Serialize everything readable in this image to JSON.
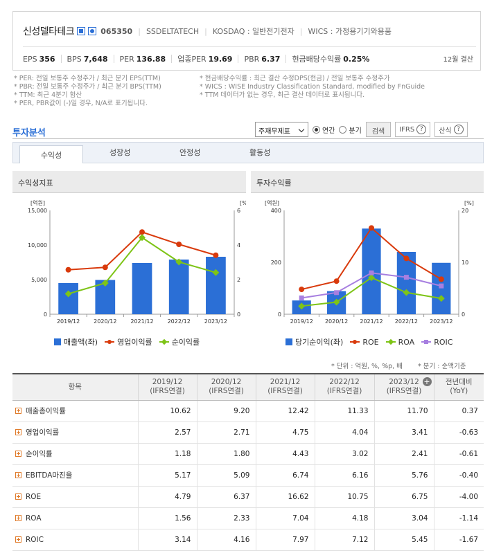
{
  "header": {
    "company": "신성델타테크",
    "code": "065350",
    "english_name": "SSDELTATECH",
    "market": "KOSDAQ : 일반전기전자",
    "wics": "WICS : 가정용기기와용품",
    "metrics": [
      {
        "label": "EPS",
        "value": "356"
      },
      {
        "label": "BPS",
        "value": "7,648"
      },
      {
        "label": "PER",
        "value": "136.88"
      },
      {
        "label": "업종PER",
        "value": "19.69"
      },
      {
        "label": "PBR",
        "value": "6.37"
      },
      {
        "label": "현금배당수익률",
        "value": "0.25%"
      }
    ],
    "fiscal": "12월 결산"
  },
  "notes": {
    "left": [
      "* PER: 전일 보통주 수정주가 / 최근 분기 EPS(TTM)",
      "* PBR: 전일 보통주 수정주가 / 최근 분기 BPS(TTM)",
      "* TTM: 최근 4분기 합산",
      "* PER, PBR값이 (-)일 경우, N/A로 표기됩니다."
    ],
    "right": [
      "* 현금배당수익률 : 최근 결산 수정DPS(현금) / 전일 보통주 수정주가",
      "* WICS : WISE Industry Classification Standard, modified by FnGuide",
      "* TTM 데이터가 없는 경우, 최근 결산 데이터로 표시됩니다."
    ]
  },
  "analysis": {
    "title": "투자분석",
    "select_value": "주재무제표",
    "radio_annual": "연간",
    "radio_quarter": "분기",
    "search_button": "검색",
    "ifrs_button": "IFRS",
    "formula_button": "산식",
    "tabs": [
      "수익성",
      "성장성",
      "안정성",
      "활동성"
    ]
  },
  "panels": {
    "left_title": "수익성지표",
    "right_title": "투자수익률"
  },
  "chart_data": [
    {
      "type": "bar",
      "categories": [
        "2019/12",
        "2020/12",
        "2021/12",
        "2022/12",
        "2023/12"
      ],
      "y_left_unit": "[억원]",
      "y_right_unit": "[%]",
      "y_left_ticks": [
        "15,000",
        "10,000",
        "5,000",
        "0"
      ],
      "y_right_ticks": [
        "6",
        "4",
        "2",
        "0"
      ],
      "y_left_lim": [
        0,
        15000
      ],
      "y_right_lim": [
        0,
        6
      ],
      "series": [
        {
          "name": "매출액(좌)",
          "axis": "left",
          "kind": "bar",
          "color": "#2b6fd6",
          "values": [
            4500,
            4950,
            7400,
            7900,
            8300
          ]
        },
        {
          "name": "영업이익률",
          "axis": "right",
          "kind": "line",
          "color": "#d93a0c",
          "values": [
            2.57,
            2.71,
            4.75,
            4.04,
            3.41
          ]
        },
        {
          "name": "순이익률",
          "axis": "right",
          "kind": "line",
          "color": "#7ec417",
          "values": [
            1.18,
            1.8,
            4.43,
            3.02,
            2.41
          ]
        }
      ]
    },
    {
      "type": "bar",
      "categories": [
        "2019/12",
        "2020/12",
        "2021/12",
        "2022/12",
        "2023/12"
      ],
      "y_left_unit": "[억원]",
      "y_right_unit": "[%]",
      "y_left_ticks": [
        "400",
        "200",
        "0"
      ],
      "y_right_ticks": [
        "20",
        "10",
        "0"
      ],
      "y_left_lim": [
        0,
        400
      ],
      "y_right_lim": [
        0,
        20
      ],
      "series": [
        {
          "name": "당기순이익(좌)",
          "axis": "left",
          "kind": "bar",
          "color": "#2b6fd6",
          "values": [
            53,
            89,
            330,
            240,
            198
          ]
        },
        {
          "name": "ROE",
          "axis": "right",
          "kind": "line",
          "color": "#d93a0c",
          "values": [
            4.79,
            6.37,
            16.62,
            10.75,
            6.75
          ]
        },
        {
          "name": "ROA",
          "axis": "right",
          "kind": "line",
          "color": "#7ec417",
          "values": [
            1.56,
            2.33,
            7.04,
            4.18,
            3.04
          ]
        },
        {
          "name": "ROIC",
          "axis": "right",
          "kind": "line",
          "color": "#a77fe0",
          "values": [
            3.14,
            4.16,
            7.97,
            7.12,
            5.45
          ]
        }
      ]
    }
  ],
  "table": {
    "unit_note": "* 단위 : 억원, %, %p, 배",
    "quarter_note": "* 분기 : 순액기준",
    "header_item": "항목",
    "columns": [
      {
        "year": "2019/12",
        "basis": "(IFRS연결)"
      },
      {
        "year": "2020/12",
        "basis": "(IFRS연결)"
      },
      {
        "year": "2021/12",
        "basis": "(IFRS연결)"
      },
      {
        "year": "2022/12",
        "basis": "(IFRS연결)"
      },
      {
        "year": "2023/12",
        "basis": "(IFRS연결)"
      },
      {
        "year": "전년대비",
        "basis": "(YoY)"
      }
    ],
    "rows": [
      {
        "name": "매출총이익률",
        "values": [
          "10.62",
          "9.20",
          "12.42",
          "11.33",
          "11.70",
          "0.37"
        ]
      },
      {
        "name": "영업이익률",
        "values": [
          "2.57",
          "2.71",
          "4.75",
          "4.04",
          "3.41",
          "-0.63"
        ]
      },
      {
        "name": "순이익률",
        "values": [
          "1.18",
          "1.80",
          "4.43",
          "3.02",
          "2.41",
          "-0.61"
        ]
      },
      {
        "name": "EBITDA마진율",
        "values": [
          "5.17",
          "5.09",
          "6.74",
          "6.16",
          "5.76",
          "-0.40"
        ]
      },
      {
        "name": "ROE",
        "values": [
          "4.79",
          "6.37",
          "16.62",
          "10.75",
          "6.75",
          "-4.00"
        ]
      },
      {
        "name": "ROA",
        "values": [
          "1.56",
          "2.33",
          "7.04",
          "4.18",
          "3.04",
          "-1.14"
        ]
      },
      {
        "name": "ROIC",
        "values": [
          "3.14",
          "4.16",
          "7.97",
          "7.12",
          "5.45",
          "-1.67"
        ]
      }
    ]
  }
}
